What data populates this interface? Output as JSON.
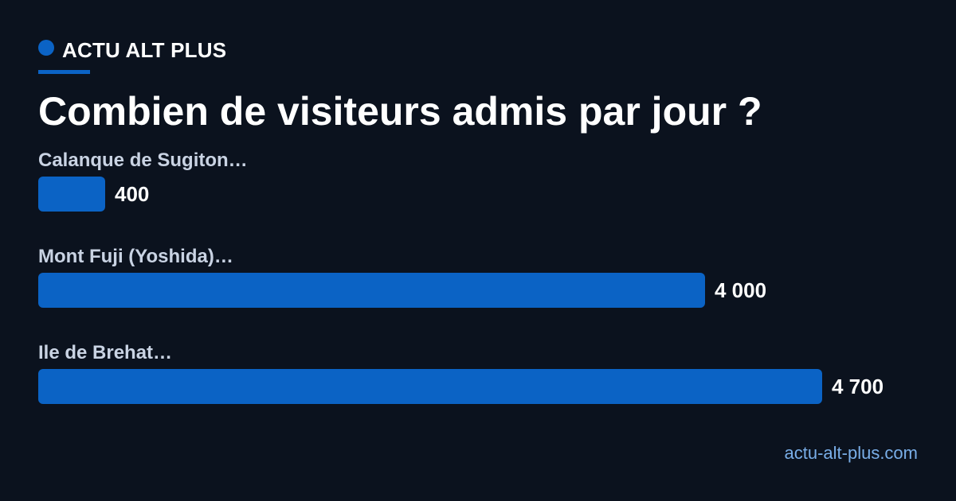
{
  "brand": {
    "name": "ACTU ALT PLUS"
  },
  "title": "Combien de visiteurs admis par jour ?",
  "footer": {
    "site": "actu-alt-plus.com"
  },
  "colors": {
    "background": "#0b121e",
    "accent": "#0b63c5",
    "label": "#c9d3e3",
    "link": "#79aee8"
  },
  "chart_data": {
    "type": "bar",
    "orientation": "horizontal",
    "title": "Combien de visiteurs admis par jour ?",
    "categories": [
      "Calanque de Sugiton…",
      "Mont Fuji (Yoshida)…",
      "Ile de Brehat…"
    ],
    "values": [
      400,
      4000,
      4700
    ],
    "value_labels": [
      "400",
      "4 000",
      "4 700"
    ],
    "xlabel": "",
    "ylabel": "",
    "grid": false,
    "legend": "none"
  }
}
